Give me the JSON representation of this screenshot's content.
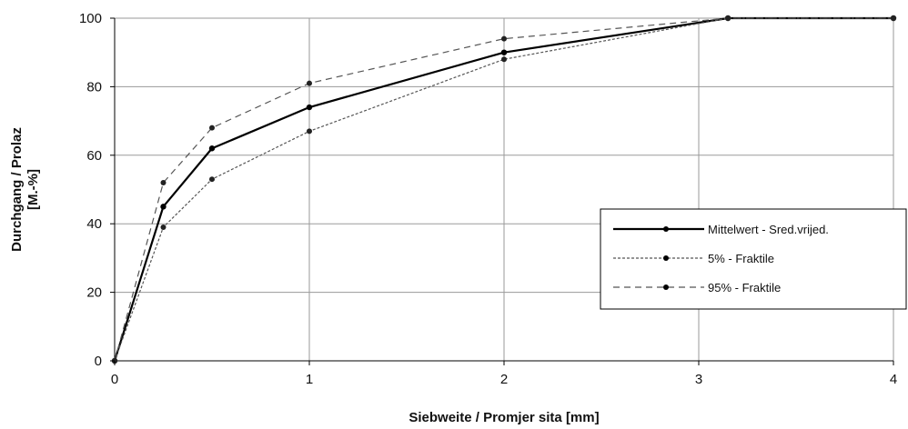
{
  "chart_data": {
    "type": "line",
    "xlabel": "Siebweite / Promjer sita [mm]",
    "ylabel_line1": "Durchgang / Prolaz",
    "ylabel_line2": "[M.-%]",
    "xlim": [
      0,
      4
    ],
    "ylim": [
      0,
      100
    ],
    "xticks": [
      0,
      1,
      2,
      3,
      4
    ],
    "yticks": [
      0,
      20,
      40,
      60,
      80,
      100
    ],
    "grid": true,
    "legend_position": "right",
    "series": [
      {
        "name": "Mittelwert - Sred.vrijed.",
        "style": "solid",
        "color": "#000000",
        "x": [
          0,
          0.25,
          0.5,
          1,
          2,
          3.15,
          4
        ],
        "y": [
          0,
          45,
          62,
          74,
          90,
          100,
          100
        ]
      },
      {
        "name": "5% - Fraktile",
        "style": "dotted",
        "color": "#555555",
        "x": [
          0,
          0.25,
          0.5,
          1,
          2,
          3.15,
          4
        ],
        "y": [
          0,
          39,
          53,
          67,
          88,
          100,
          100
        ]
      },
      {
        "name": "95% - Fraktile",
        "style": "dashed",
        "color": "#555555",
        "x": [
          0,
          0.25,
          0.5,
          1,
          2,
          3.15,
          4
        ],
        "y": [
          0,
          52,
          68,
          81,
          94,
          100,
          100
        ]
      }
    ]
  }
}
